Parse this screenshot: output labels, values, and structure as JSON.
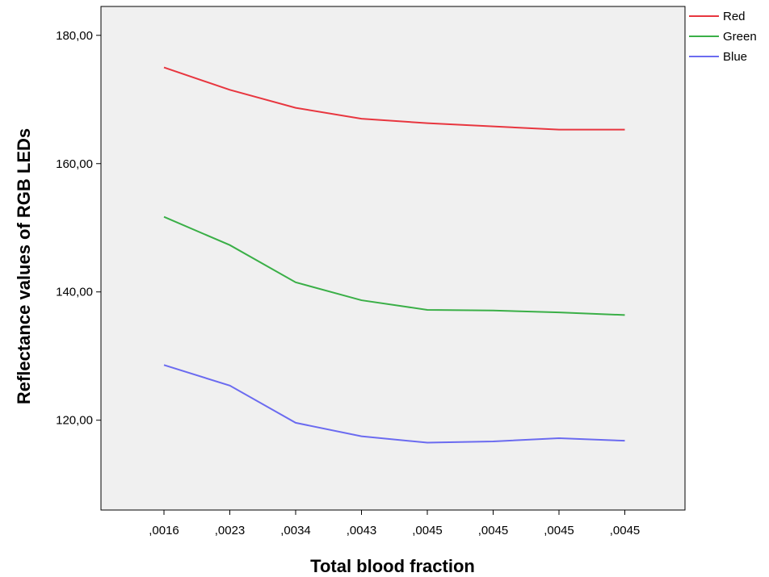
{
  "chart_data": {
    "type": "line",
    "title": "",
    "xlabel": "Total blood fraction",
    "ylabel": "Reflectance values of RGB LEDs",
    "categories": [
      ",0016",
      ",0023",
      ",0034",
      ",0043",
      ",0045",
      ",0045",
      ",0045",
      ",0045"
    ],
    "y_ticks": [
      120,
      140,
      160,
      180
    ],
    "y_tick_labels": [
      "120,00",
      "140,00",
      "160,00",
      "180,00"
    ],
    "ylim": [
      106,
      184.5
    ],
    "grid": false,
    "legend_position": "top-right",
    "plot_background": "#f0f0f0",
    "series": [
      {
        "name": "Red",
        "color": "#e8363f",
        "values": [
          175.0,
          171.5,
          168.7,
          167.0,
          166.3,
          165.8,
          165.3,
          165.3
        ]
      },
      {
        "name": "Green",
        "color": "#3aaf47",
        "values": [
          151.7,
          147.3,
          141.5,
          138.7,
          137.2,
          137.1,
          136.8,
          136.4
        ]
      },
      {
        "name": "Blue",
        "color": "#6b6bf0",
        "values": [
          128.6,
          125.4,
          119.6,
          117.5,
          116.5,
          116.7,
          117.2,
          116.8
        ]
      }
    ]
  }
}
